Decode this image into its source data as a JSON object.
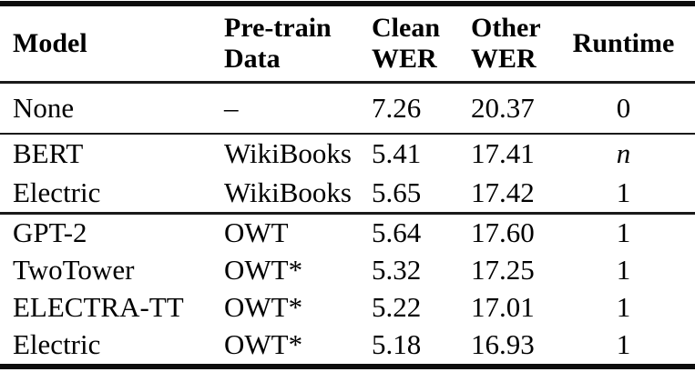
{
  "table": {
    "colors": {
      "background": "#ffffff",
      "text": "#000000",
      "rule": "#0d0d0d"
    },
    "headers": {
      "model": "Model",
      "pretrain_line1": "Pre-train",
      "pretrain_line2": "Data",
      "clean_line1": "Clean",
      "clean_line2": "WER",
      "other_line1": "Other",
      "other_line2": "WER",
      "runtime": "Runtime"
    },
    "sections": [
      {
        "rows": [
          {
            "model": "None",
            "pretrain": "–",
            "clean_wer": "7.26",
            "other_wer": "20.37",
            "runtime": "0",
            "runtime_style": "roman"
          }
        ]
      },
      {
        "rows": [
          {
            "model": "BERT",
            "pretrain": "WikiBooks",
            "clean_wer": "5.41",
            "other_wer": "17.41",
            "runtime": "n",
            "runtime_style": "italic"
          },
          {
            "model": "Electric",
            "pretrain": "WikiBooks",
            "clean_wer": "5.65",
            "other_wer": "17.42",
            "runtime": "1",
            "runtime_style": "roman"
          }
        ]
      },
      {
        "rows": [
          {
            "model": "GPT-2",
            "pretrain": "OWT",
            "clean_wer": "5.64",
            "other_wer": "17.60",
            "runtime": "1",
            "runtime_style": "roman"
          },
          {
            "model": "TwoTower",
            "pretrain": "OWT*",
            "clean_wer": "5.32",
            "other_wer": "17.25",
            "runtime": "1",
            "runtime_style": "roman"
          },
          {
            "model": "ELECTRA-TT",
            "pretrain": "OWT*",
            "clean_wer": "5.22",
            "other_wer": "17.01",
            "runtime": "1",
            "runtime_style": "roman"
          },
          {
            "model": "Electric",
            "pretrain": "OWT*",
            "clean_wer": "5.18",
            "other_wer": "16.93",
            "runtime": "1",
            "runtime_style": "roman"
          }
        ]
      }
    ]
  }
}
